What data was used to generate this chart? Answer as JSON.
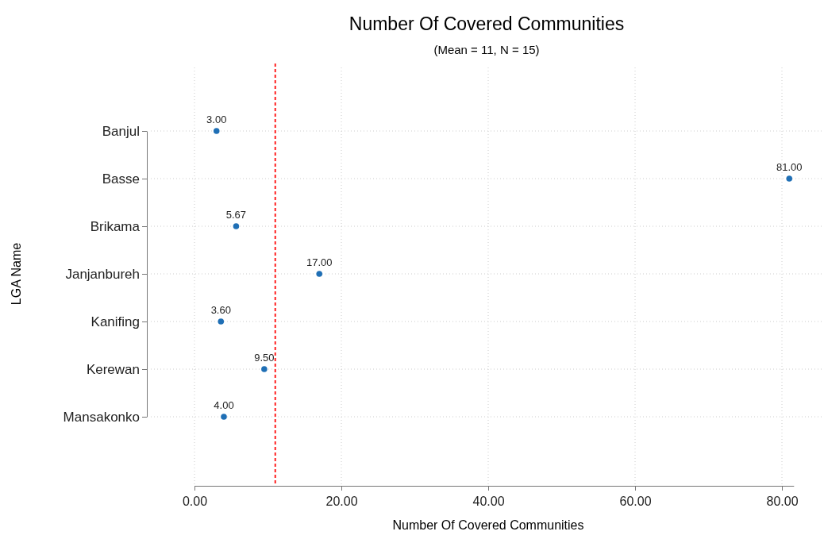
{
  "chart_data": {
    "type": "scatter",
    "orientation": "horizontal",
    "title": "Number Of Covered Communities",
    "subtitle": "(Mean = 11, N = 15)",
    "xlabel": "Number Of Covered Communities",
    "ylabel": "LGA Name",
    "categories": [
      "Banjul",
      "Basse",
      "Brikama",
      "Janjanbureh",
      "Kanifing",
      "Kerewan",
      "Mansakonko"
    ],
    "series": [
      {
        "color": "#1f6fb5",
        "values": [
          3,
          81,
          5.67,
          17,
          3.6,
          9.5,
          4
        ],
        "value_labels": [
          "3.00",
          "81.00",
          "5.67",
          "17.00",
          "3.60",
          "9.50",
          "4.00"
        ]
      }
    ],
    "xlim": [
      0,
      81.6
    ],
    "xticks": [
      {
        "value": 0,
        "label": "0.00"
      },
      {
        "value": 20,
        "label": "20.00"
      },
      {
        "value": 40,
        "label": "40.00"
      },
      {
        "value": 60,
        "label": "60.00"
      },
      {
        "value": 80,
        "label": "80.00"
      }
    ],
    "ref_lines": [
      {
        "axis": "x",
        "value": 11,
        "color": "#ff2020",
        "line_style": "dashed"
      }
    ],
    "grid": true,
    "marker": "circle"
  }
}
